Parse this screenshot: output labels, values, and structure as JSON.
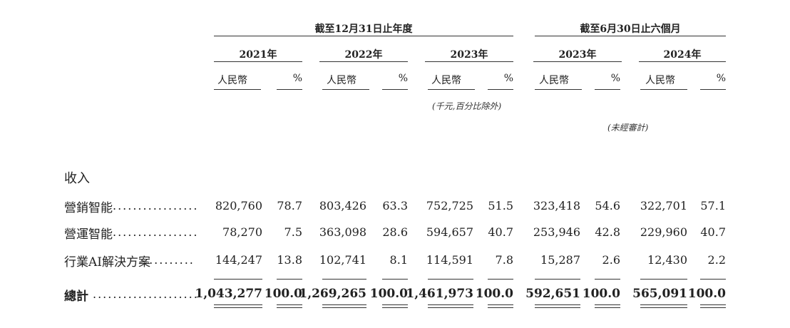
{
  "header": {
    "group_fy": "截至12月31日止年度",
    "group_6m": "截至6月30日止六個月",
    "years": [
      "2021年",
      "2022年",
      "2023年",
      "2023年",
      "2024年"
    ],
    "currency_label": "人民幣",
    "percent_label": "%",
    "note_thousands": "(千元,百分比除外)",
    "note_unaudited": "(未經審計)"
  },
  "section_title": "收入",
  "rows": [
    {
      "label": "營銷智能",
      "leader": ".................",
      "values": [
        "820,760",
        "78.7",
        "803,426",
        "63.3",
        "752,725",
        "51.5",
        "323,418",
        "54.6",
        "322,701",
        "57.1"
      ]
    },
    {
      "label": "營運智能",
      "leader": ".................",
      "values": [
        "78,270",
        "7.5",
        "363,098",
        "28.6",
        "594,657",
        "40.7",
        "253,946",
        "42.8",
        "229,960",
        "40.7"
      ]
    },
    {
      "label": "行業AI解決方案",
      "leader": "..........",
      "values": [
        "144,247",
        "13.8",
        "102,741",
        "8.1",
        "114,591",
        "7.8",
        "15,287",
        "2.6",
        "12,430",
        "2.2"
      ]
    }
  ],
  "total": {
    "label": "總計",
    "leader": ".....................",
    "values": [
      "1,043,277",
      "100.0",
      "1,269,265",
      "100.0",
      "1,461,973",
      "100.0",
      "592,651",
      "100.0",
      "565,091",
      "100.0"
    ]
  }
}
